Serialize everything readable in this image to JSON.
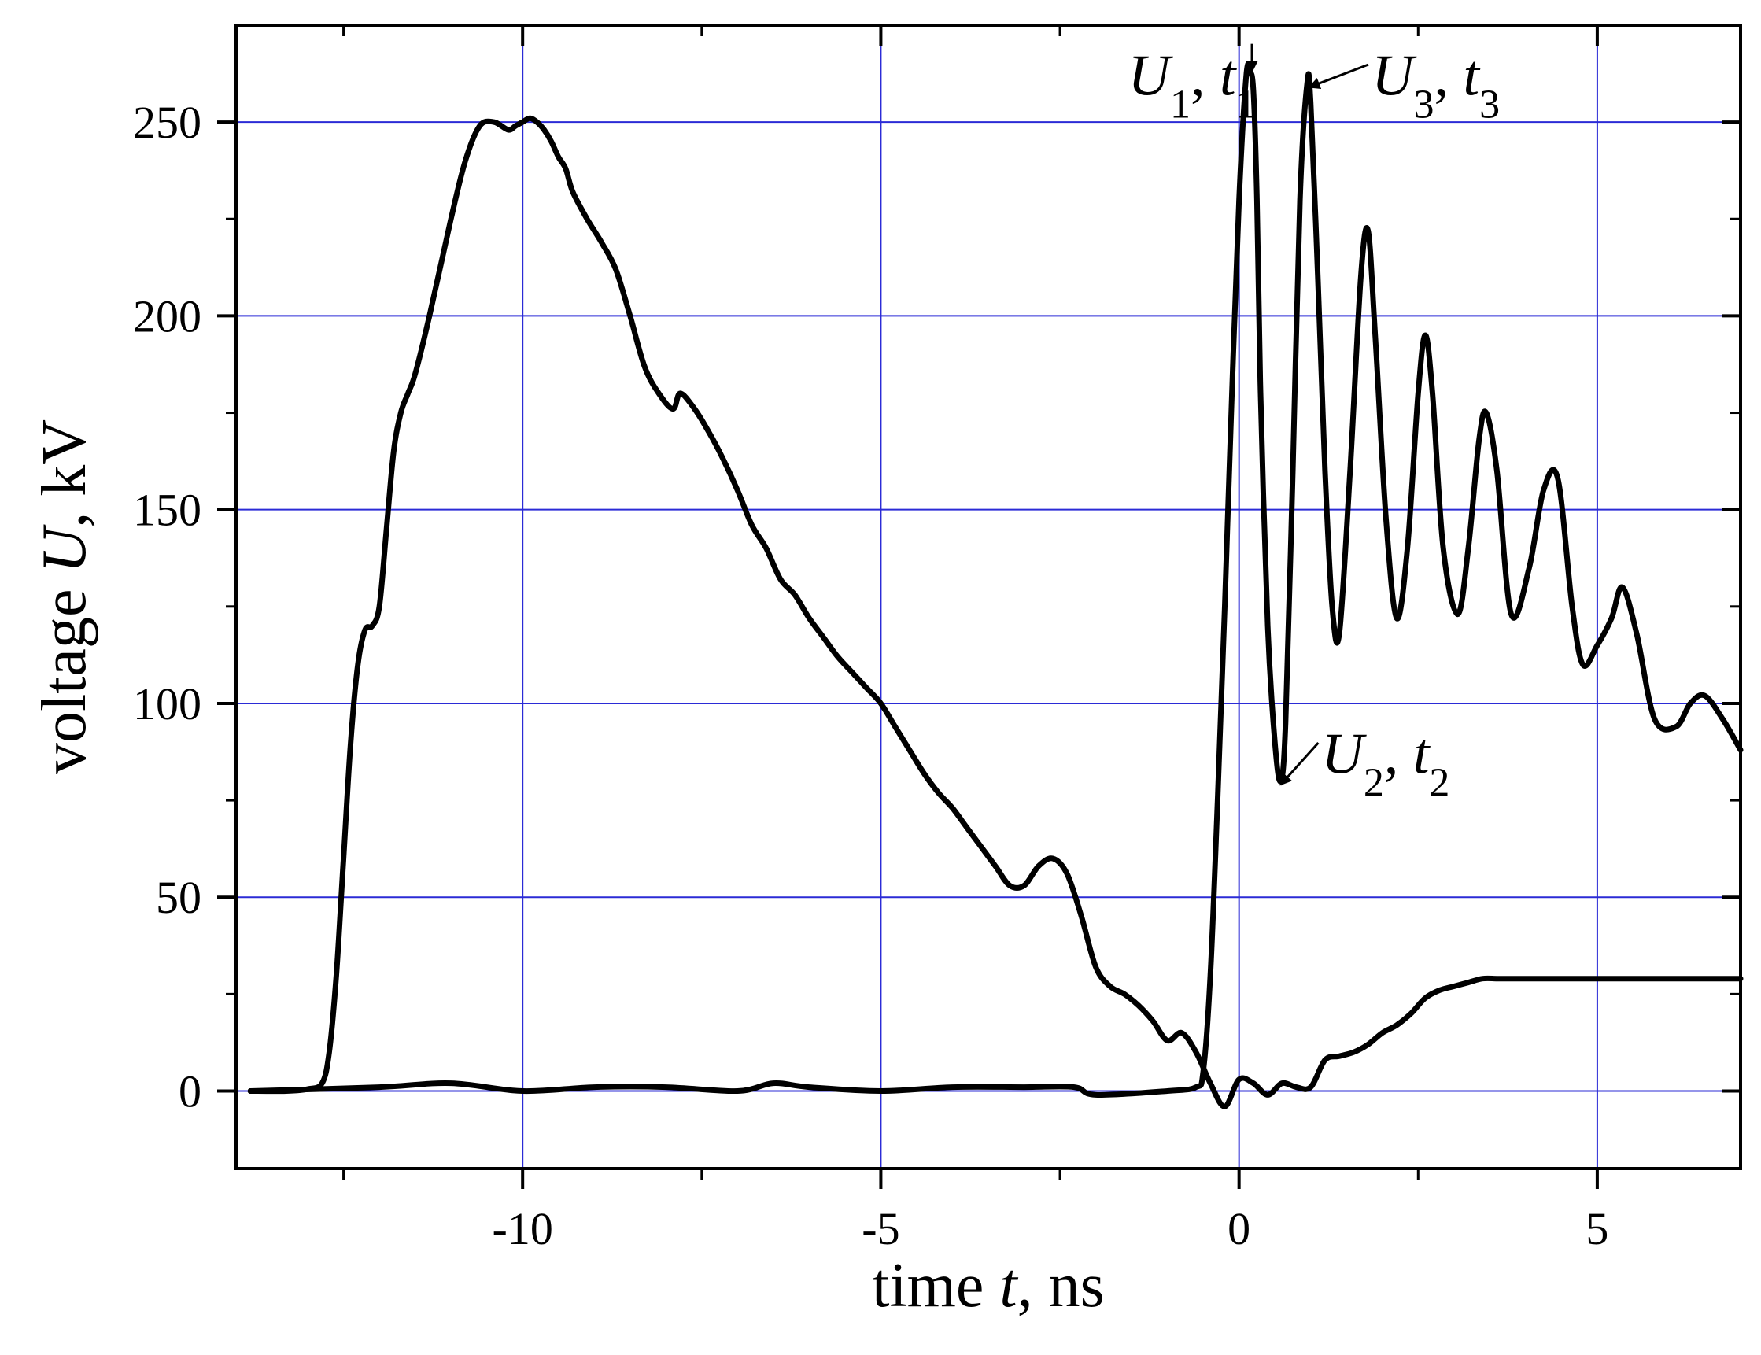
{
  "chart_data": {
    "type": "line",
    "xlabel": {
      "prefix": "time ",
      "var": "t",
      "suffix": ", ns"
    },
    "ylabel": {
      "prefix": "voltage ",
      "var": "U",
      "suffix": ", kV"
    },
    "xlim": [
      -14,
      7
    ],
    "ylim": [
      -20,
      275
    ],
    "x_major_ticks": [
      -10,
      -5,
      0,
      5
    ],
    "x_minor_ticks": [
      -12.5,
      -7.5,
      -2.5,
      2.5
    ],
    "x_tick_labels": [
      "-10",
      "-5",
      "0",
      "5"
    ],
    "y_ticks": [
      0,
      50,
      100,
      150,
      200,
      250
    ],
    "y_tick_labels": [
      "0",
      "50",
      "100",
      "150",
      "200",
      "250"
    ],
    "grid": true,
    "grid_color": "#2b2bd6",
    "line_color": "#000000",
    "series": [
      {
        "x": [
          -13.8,
          -13.3,
          -13.0,
          -12.8,
          -12.7,
          -12.6,
          -12.5,
          -12.4,
          -12.3,
          -12.2,
          -12.1,
          -12.0,
          -11.9,
          -11.8,
          -11.7,
          -11.6,
          -11.5,
          -11.3,
          -11.0,
          -10.8,
          -10.6,
          -10.4,
          -10.2,
          -10.1,
          -10.0,
          -9.9,
          -9.8,
          -9.7,
          -9.6,
          -9.5,
          -9.4,
          -9.3,
          -9.1,
          -8.9,
          -8.7,
          -8.5,
          -8.3,
          -8.1,
          -7.9,
          -7.8,
          -7.6,
          -7.4,
          -7.2,
          -7.0,
          -6.8,
          -6.6,
          -6.4,
          -6.2,
          -6.0,
          -5.8,
          -5.6,
          -5.4,
          -5.2,
          -5.0,
          -4.8,
          -4.6,
          -4.4,
          -4.2,
          -4.0,
          -3.8,
          -3.6,
          -3.4,
          -3.2,
          -3.0,
          -2.8,
          -2.6,
          -2.4,
          -2.2,
          -2.0,
          -1.8,
          -1.6,
          -1.4,
          -1.2,
          -1.0,
          -0.8,
          -0.6,
          -0.4,
          -0.2,
          0.0,
          0.2,
          0.4,
          0.6,
          0.8,
          1.0,
          1.2,
          1.4,
          1.6,
          1.8,
          2.0,
          2.2,
          2.4,
          2.6,
          2.8,
          3.0,
          3.2,
          3.4,
          3.6,
          3.8,
          4.0,
          4.2,
          4.4,
          4.6,
          4.8,
          5.0,
          5.2,
          5.4,
          5.6,
          5.8,
          6.0,
          6.2,
          6.4,
          6.6,
          6.8,
          7.0
        ],
        "y": [
          0,
          0,
          0.5,
          2,
          10,
          30,
          60,
          90,
          110,
          119,
          120,
          125,
          145,
          165,
          175,
          180,
          185,
          200,
          225,
          240,
          249,
          250,
          248,
          249,
          250,
          251,
          250,
          248,
          245,
          241,
          238,
          232,
          225,
          219,
          212,
          200,
          187,
          180,
          176,
          180,
          176,
          170,
          163,
          155,
          146,
          140,
          132,
          128,
          122,
          117,
          112,
          108,
          104,
          100,
          94,
          88,
          82,
          77,
          73,
          68,
          63,
          58,
          53,
          53,
          58,
          60,
          56,
          45,
          32,
          27,
          25,
          22,
          18,
          13,
          15,
          10,
          2,
          -4,
          3,
          2,
          -1,
          2,
          1,
          1,
          8,
          9,
          10,
          12,
          15,
          17,
          20,
          24,
          26,
          27,
          28,
          29,
          29,
          29,
          29,
          29,
          29,
          29,
          29,
          29,
          29,
          29,
          29,
          29,
          29,
          29,
          29,
          29,
          29,
          29
        ]
      },
      {
        "x": [
          -13.8,
          -12.0,
          -11.0,
          -10.0,
          -9.0,
          -8.0,
          -7.0,
          -6.5,
          -6.0,
          -5.0,
          -4.0,
          -3.0,
          -2.3,
          -2.0,
          -1.0,
          -0.6,
          -0.5,
          -0.4,
          -0.3,
          -0.2,
          -0.1,
          0.0,
          0.1,
          0.15,
          0.2,
          0.25,
          0.3,
          0.4,
          0.5,
          0.58,
          0.65,
          0.75,
          0.85,
          0.95,
          1.0,
          1.1,
          1.2,
          1.3,
          1.4,
          1.55,
          1.7,
          1.8,
          1.9,
          2.05,
          2.2,
          2.35,
          2.5,
          2.6,
          2.7,
          2.85,
          3.05,
          3.2,
          3.35,
          3.45,
          3.6,
          3.8,
          4.05,
          4.25,
          4.45,
          4.65,
          4.8,
          5.0,
          5.2,
          5.35,
          5.55,
          5.8,
          6.1,
          6.3,
          6.5,
          6.75,
          7.0
        ],
        "y": [
          0,
          1,
          2,
          0,
          1,
          1,
          0,
          2,
          1,
          0,
          1,
          1,
          1,
          -1,
          0,
          1,
          5,
          30,
          75,
          125,
          180,
          230,
          262,
          263,
          258,
          230,
          180,
          120,
          90,
          80,
          95,
          160,
          230,
          260,
          255,
          210,
          160,
          125,
          118,
          160,
          210,
          222,
          195,
          148,
          122,
          140,
          180,
          195,
          180,
          140,
          123,
          140,
          168,
          175,
          160,
          123,
          135,
          155,
          158,
          125,
          110,
          115,
          122,
          130,
          118,
          96,
          94,
          100,
          102,
          96,
          88
        ]
      }
    ],
    "annotations": [
      {
        "var": "U",
        "sub": "1",
        "sep": ", ",
        "var2": "t",
        "sub2": "1",
        "tx": -1.55,
        "ty": 257,
        "ax": 0.18,
        "ay": 263
      },
      {
        "var": "U",
        "sub": "3",
        "sep": ", ",
        "var2": "t",
        "sub2": "3",
        "tx": 1.85,
        "ty": 257,
        "ax": 0.98,
        "ay": 259
      },
      {
        "var": "U",
        "sub": "2",
        "sep": ", ",
        "var2": "t",
        "sub2": "2",
        "tx": 1.15,
        "ty": 82,
        "ax": 0.58,
        "ay": 79
      }
    ]
  }
}
